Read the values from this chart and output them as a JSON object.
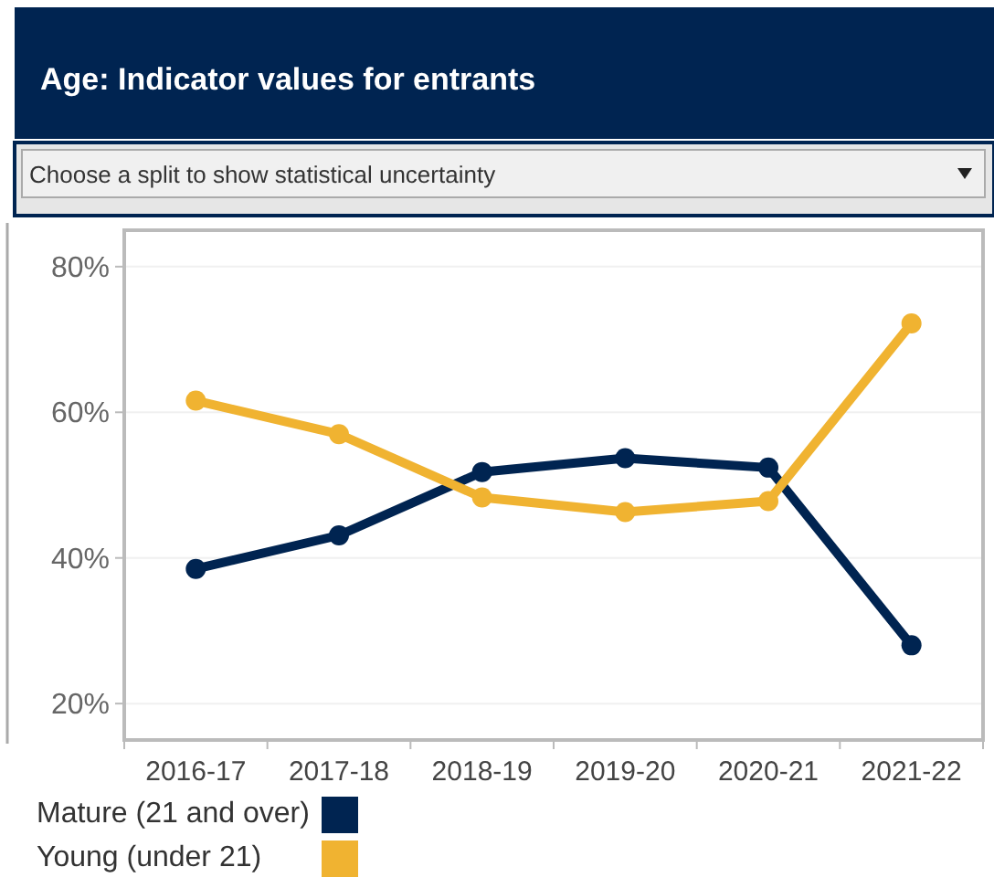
{
  "chart_data": {
    "type": "line",
    "title": "Age: Indicator values for entrants",
    "annotations": [
      "Choose a split to show statistical uncertainty"
    ],
    "categories": [
      "2016-17",
      "2017-18",
      "2018-19",
      "2019-20",
      "2020-21",
      "2021-22"
    ],
    "series": [
      {
        "name": "Mature (21 and over)",
        "color": "#002451",
        "values": [
          38.5,
          43.1,
          51.8,
          53.7,
          52.4,
          28.0
        ]
      },
      {
        "name": "Young (under 21)",
        "color": "#f0b331",
        "values": [
          61.6,
          57.0,
          48.3,
          46.3,
          47.8,
          72.2
        ]
      }
    ],
    "ylim": [
      15,
      85
    ],
    "yticks": [
      {
        "value": 20,
        "label": "20%"
      },
      {
        "value": 40,
        "label": "40%"
      },
      {
        "value": 60,
        "label": "60%"
      },
      {
        "value": 80,
        "label": "80%"
      }
    ],
    "grid": "y",
    "legend": "bottom",
    "marker": "circle",
    "line_style": "solid"
  }
}
